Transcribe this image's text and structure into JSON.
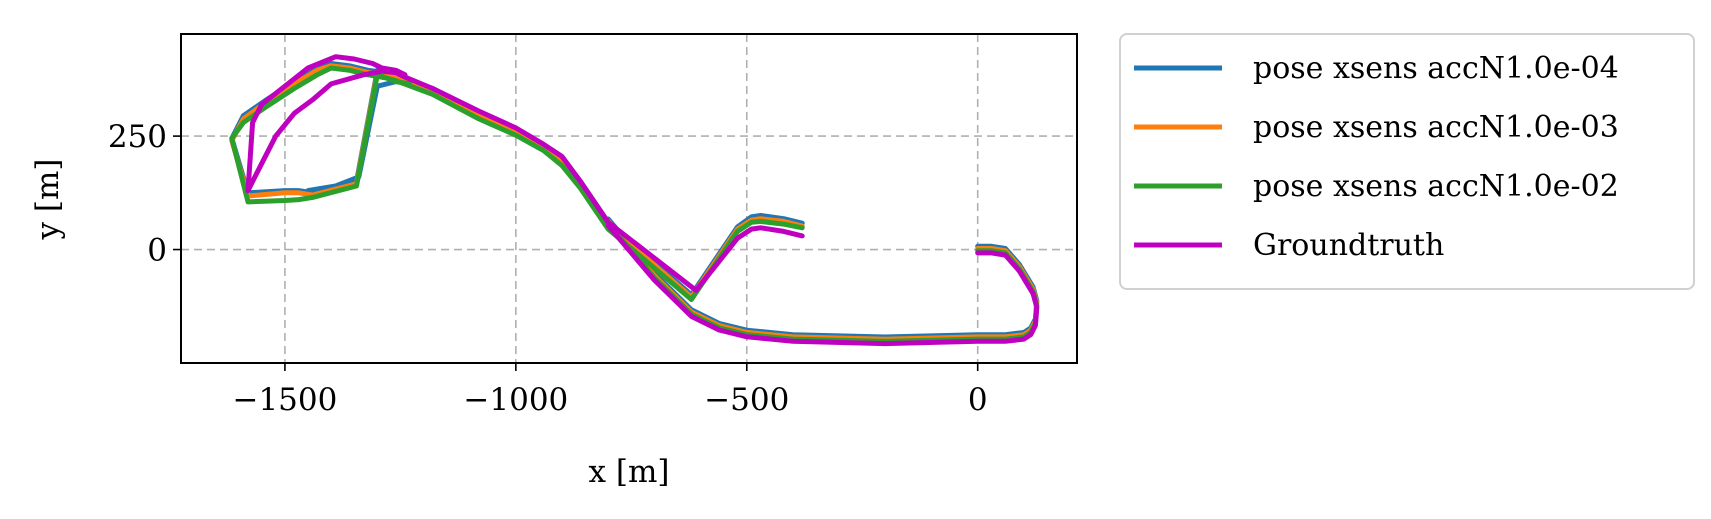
{
  "chart_data": {
    "type": "line",
    "title": "",
    "xlabel": "x [m]",
    "ylabel": "y [m]",
    "xlim": [
      -1725,
      215
    ],
    "ylim": [
      -250,
      475
    ],
    "xticks": [
      {
        "value": -1500,
        "label": "−1500"
      },
      {
        "value": -1000,
        "label": "−1000"
      },
      {
        "value": -500,
        "label": "−500"
      },
      {
        "value": 0,
        "label": "0"
      }
    ],
    "yticks": [
      {
        "value": 0,
        "label": "0"
      },
      {
        "value": 250,
        "label": "250"
      }
    ],
    "grid": true,
    "legend": {
      "placement": "outside-upper-right"
    },
    "series": [
      {
        "name": "pose xsens accN1.0e-04",
        "color": "#1f77b4",
        "x": [
          -380,
          -420,
          -470,
          -490,
          -520,
          -620,
          -800,
          -860,
          -900,
          -940,
          -1000,
          -1080,
          -1180,
          -1260,
          -1280,
          -1300,
          -1345,
          -1440,
          -1470,
          -1500,
          -1580,
          -1615,
          -1590,
          -1540,
          -1480,
          -1430,
          -1400,
          -1360,
          -1320,
          -1280,
          -1260,
          -1230,
          -1260,
          -1300,
          -1340,
          -1390,
          -1450
        ],
        "y": [
          58,
          68,
          75,
          72,
          50,
          -100,
          60,
          150,
          200,
          230,
          265,
          300,
          355,
          382,
          390,
          395,
          150,
          125,
          130,
          130,
          125,
          245,
          295,
          330,
          370,
          400,
          410,
          405,
          395,
          390,
          380,
          375,
          370,
          360,
          160,
          140,
          130
        ]
      },
      {
        "name": "pose xsens accN1.0e-03",
        "color": "#ff7f0e",
        "x": [
          -380,
          -420,
          -470,
          -490,
          -520,
          -620,
          -800,
          -860,
          -900,
          -940,
          -1000,
          -1080,
          -1180,
          -1260,
          -1280,
          -1300,
          -1345,
          -1440,
          -1470,
          -1500,
          -1580,
          -1615,
          -1590,
          -1540,
          -1480,
          -1430,
          -1400,
          -1360,
          -1320,
          -1280,
          -1260,
          -1230
        ],
        "y": [
          52,
          62,
          68,
          65,
          45,
          -105,
          55,
          145,
          195,
          225,
          260,
          295,
          350,
          378,
          385,
          390,
          145,
          120,
          125,
          125,
          118,
          240,
          288,
          325,
          365,
          395,
          405,
          400,
          390,
          385,
          378,
          372
        ]
      },
      {
        "name": "pose xsens accN1.0e-02",
        "color": "#2ca02c",
        "x": [
          -380,
          -420,
          -470,
          -490,
          -520,
          -620,
          -800,
          -860,
          -900,
          -940,
          -1000,
          -1080,
          -1180,
          -1260,
          -1280,
          -1300,
          -1345,
          -1440,
          -1470,
          -1500,
          -1580,
          -1615,
          -1590,
          -1540,
          -1480,
          -1430,
          -1400,
          -1360,
          -1320,
          -1280,
          -1260,
          -1230
        ],
        "y": [
          48,
          56,
          62,
          60,
          40,
          -110,
          45,
          135,
          185,
          218,
          252,
          288,
          342,
          372,
          378,
          385,
          140,
          115,
          110,
          108,
          105,
          245,
          280,
          315,
          355,
          385,
          400,
          395,
          385,
          378,
          370,
          365
        ]
      },
      {
        "name": "Groundtruth",
        "color": "#c000c0",
        "x": [
          -380,
          -420,
          -470,
          -490,
          -520,
          -610,
          -800,
          -860,
          -900,
          -940,
          -1000,
          -1080,
          -1180,
          -1240,
          -1260,
          -1290,
          -1330,
          -1400,
          -1440,
          -1480,
          -1520,
          -1545,
          -1565,
          -1580,
          -1570,
          -1550,
          -1500,
          -1450,
          -1390,
          -1350,
          -1310,
          -1290,
          -1260,
          -1240
        ],
        "y": [
          30,
          40,
          48,
          45,
          25,
          -90,
          60,
          150,
          205,
          232,
          268,
          305,
          355,
          380,
          390,
          393,
          385,
          365,
          330,
          300,
          250,
          200,
          160,
          130,
          280,
          320,
          360,
          400,
          425,
          420,
          410,
          400,
          395,
          385
        ]
      }
    ],
    "shared_tail": {
      "note": "",
      "x": [
        -800,
        -700,
        -620,
        -560,
        -500,
        -400,
        -200,
        0,
        60,
        100,
        115,
        125,
        128,
        120,
        90,
        60,
        30,
        0
      ],
      "y": [
        60,
        -60,
        -140,
        -170,
        -185,
        -195,
        -200,
        -195,
        -195,
        -190,
        -180,
        -160,
        -120,
        -90,
        -40,
        -5,
        0,
        0
      ]
    }
  }
}
